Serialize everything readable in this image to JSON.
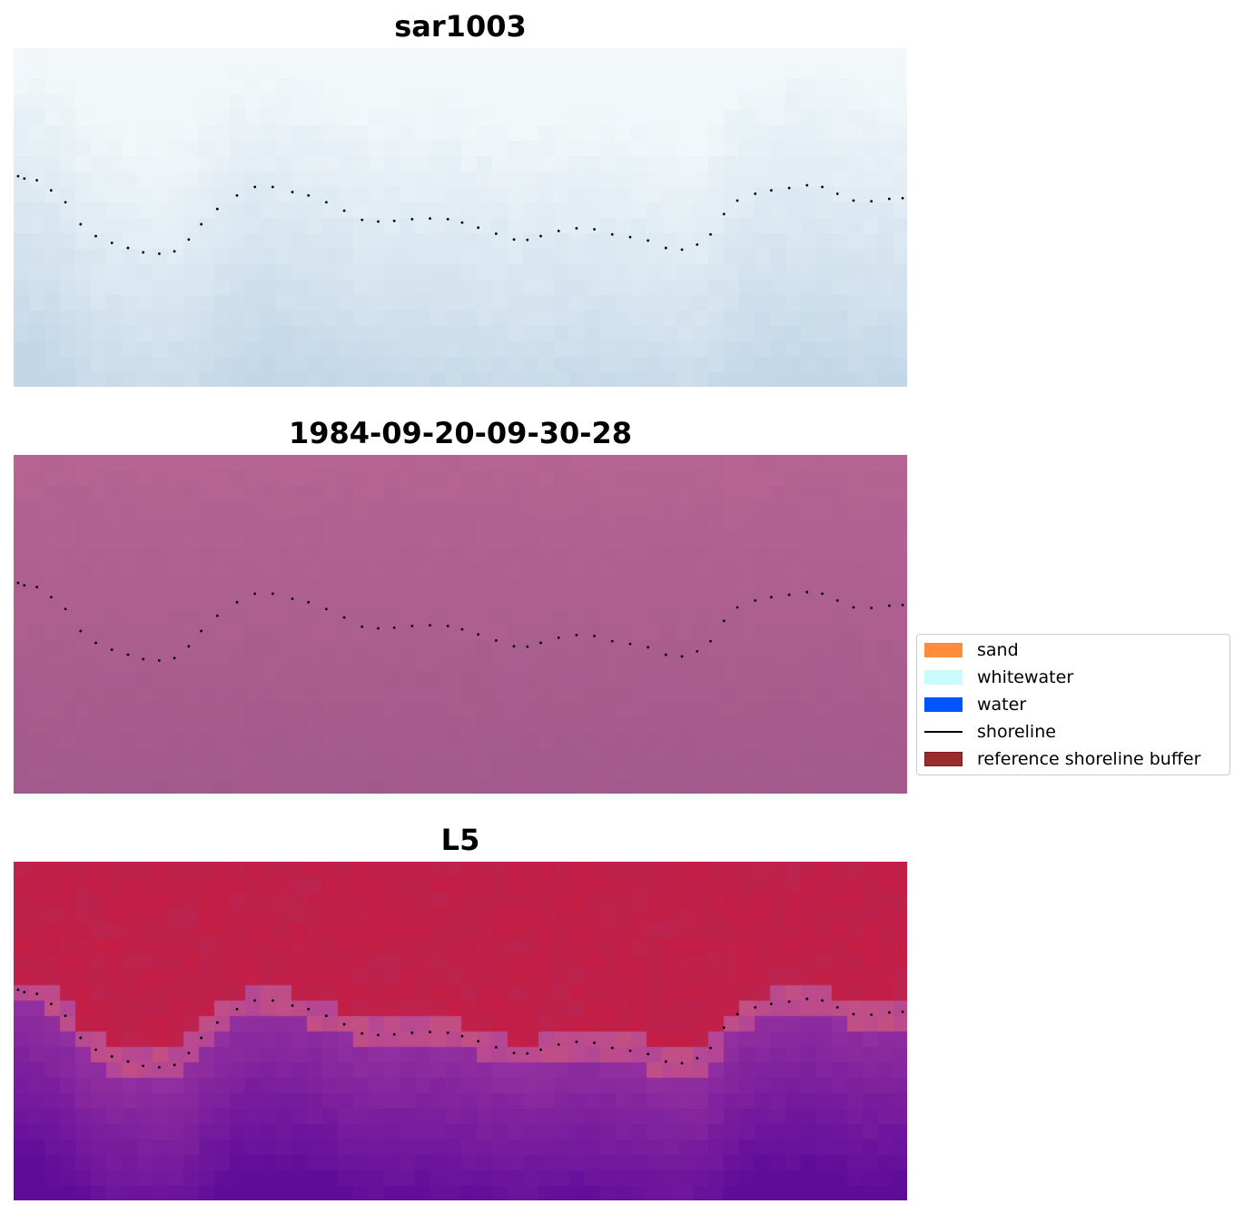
{
  "panels": [
    {
      "title": "sar1003",
      "style": "sar"
    },
    {
      "title": "1984-09-20-09-30-28",
      "style": "magenta"
    },
    {
      "title": "L5",
      "style": "crimson"
    }
  ],
  "legend": {
    "items": [
      {
        "label": "sand",
        "color": "#ff8c3a",
        "kind": "patch"
      },
      {
        "label": "whitewater",
        "color": "#c8fcfc",
        "kind": "patch"
      },
      {
        "label": "water",
        "color": "#0055ff",
        "kind": "patch"
      },
      {
        "label": "shoreline",
        "color": "#000000",
        "kind": "line"
      },
      {
        "label": "reference shoreline buffer",
        "color": "#9b2c2c",
        "kind": "patch-border"
      }
    ]
  },
  "shoreline": {
    "color": "#000000",
    "points": [
      [
        0.005,
        0.378
      ],
      [
        0.012,
        0.385
      ],
      [
        0.026,
        0.39
      ],
      [
        0.042,
        0.42
      ],
      [
        0.058,
        0.455
      ],
      [
        0.075,
        0.52
      ],
      [
        0.092,
        0.555
      ],
      [
        0.11,
        0.575
      ],
      [
        0.128,
        0.59
      ],
      [
        0.145,
        0.603
      ],
      [
        0.163,
        0.607
      ],
      [
        0.18,
        0.6
      ],
      [
        0.196,
        0.565
      ],
      [
        0.21,
        0.52
      ],
      [
        0.228,
        0.475
      ],
      [
        0.25,
        0.435
      ],
      [
        0.27,
        0.41
      ],
      [
        0.29,
        0.41
      ],
      [
        0.312,
        0.425
      ],
      [
        0.33,
        0.435
      ],
      [
        0.35,
        0.455
      ],
      [
        0.37,
        0.48
      ],
      [
        0.39,
        0.507
      ],
      [
        0.408,
        0.512
      ],
      [
        0.426,
        0.51
      ],
      [
        0.446,
        0.505
      ],
      [
        0.466,
        0.503
      ],
      [
        0.486,
        0.505
      ],
      [
        0.502,
        0.515
      ],
      [
        0.52,
        0.53
      ],
      [
        0.54,
        0.548
      ],
      [
        0.56,
        0.565
      ],
      [
        0.575,
        0.566
      ],
      [
        0.59,
        0.555
      ],
      [
        0.61,
        0.54
      ],
      [
        0.63,
        0.532
      ],
      [
        0.65,
        0.535
      ],
      [
        0.67,
        0.55
      ],
      [
        0.69,
        0.558
      ],
      [
        0.71,
        0.568
      ],
      [
        0.73,
        0.59
      ],
      [
        0.748,
        0.595
      ],
      [
        0.765,
        0.58
      ],
      [
        0.78,
        0.55
      ],
      [
        0.795,
        0.49
      ],
      [
        0.81,
        0.45
      ],
      [
        0.83,
        0.43
      ],
      [
        0.848,
        0.42
      ],
      [
        0.868,
        0.413
      ],
      [
        0.888,
        0.405
      ],
      [
        0.905,
        0.41
      ],
      [
        0.922,
        0.43
      ],
      [
        0.94,
        0.45
      ],
      [
        0.96,
        0.452
      ],
      [
        0.98,
        0.445
      ],
      [
        0.995,
        0.443
      ]
    ]
  }
}
